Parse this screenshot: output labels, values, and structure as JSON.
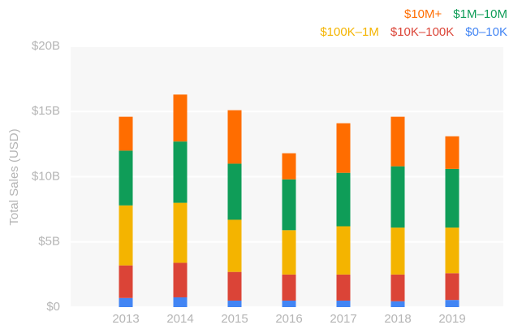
{
  "chart_data": {
    "type": "stacked_bar",
    "y_label": "Total Sales (USD)",
    "categories": [
      "2013",
      "2014",
      "2015",
      "2016",
      "2017",
      "2018",
      "2019"
    ],
    "series": [
      {
        "name": "$0–10K",
        "color": "#4285f4",
        "values": [
          0.7,
          0.75,
          0.5,
          0.5,
          0.5,
          0.45,
          0.55
        ]
      },
      {
        "name": "$10K–100K",
        "color": "#db4437",
        "values": [
          2.5,
          2.65,
          2.2,
          2.0,
          2.0,
          2.05,
          2.05
        ]
      },
      {
        "name": "$100K–1M",
        "color": "#f4b400",
        "values": [
          4.6,
          4.6,
          4.0,
          3.4,
          3.7,
          3.6,
          3.5
        ]
      },
      {
        "name": "$1M–10M",
        "color": "#0f9d58",
        "values": [
          4.2,
          4.7,
          4.3,
          3.9,
          4.1,
          4.7,
          4.5
        ]
      },
      {
        "name": "$10M+",
        "color": "#ff6d00",
        "values": [
          2.6,
          3.6,
          4.1,
          2.0,
          3.8,
          3.8,
          2.5
        ]
      }
    ],
    "ylim": [
      0,
      20
    ],
    "yticks": [
      {
        "value": 0,
        "label": "$0"
      },
      {
        "value": 5,
        "label": "$5B"
      },
      {
        "value": 10,
        "label": "$10B"
      },
      {
        "value": 15,
        "label": "$15B"
      },
      {
        "value": 20,
        "label": "$20B"
      }
    ],
    "grid": true,
    "legend": "top-right"
  }
}
